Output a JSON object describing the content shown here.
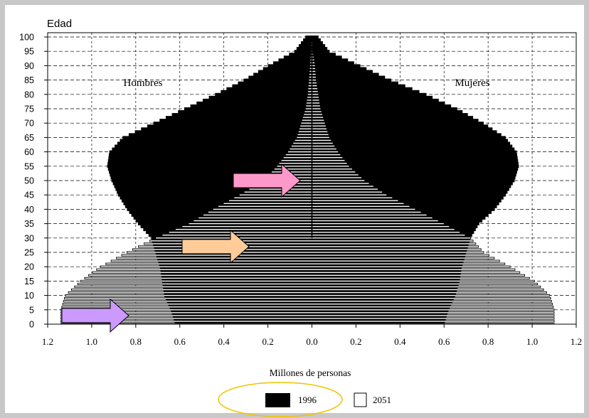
{
  "chart_data": {
    "type": "bar",
    "title": "",
    "ylabel": "Edad",
    "xlabel": "Millones de personas",
    "left_label": "Hombres",
    "right_label": "Mujeres",
    "x_tick_labels": [
      "1.2",
      "1.0",
      "0.8",
      "0.6",
      "0.4",
      "0.2",
      "0.0",
      "0.2",
      "0.4",
      "0.6",
      "0.8",
      "1.0",
      "1.2"
    ],
    "y_tick_labels": [
      "0",
      "5",
      "10",
      "15",
      "20",
      "25",
      "30",
      "35",
      "40",
      "45",
      "50",
      "55",
      "60",
      "65",
      "70",
      "75",
      "80",
      "85",
      "90",
      "95",
      "100"
    ],
    "xlim": [
      -1.2,
      1.2
    ],
    "ylim": [
      0,
      100
    ],
    "grid": true,
    "legend_position": "bottom",
    "ages": [
      0,
      5,
      10,
      15,
      20,
      25,
      30,
      35,
      40,
      45,
      50,
      55,
      60,
      65,
      70,
      75,
      80,
      85,
      90,
      95,
      100
    ],
    "series": [
      {
        "name": "1996",
        "color": "#000000",
        "fill": "solid",
        "male": [
          0.62,
          0.64,
          0.67,
          0.68,
          0.69,
          0.71,
          0.73,
          0.79,
          0.84,
          0.88,
          0.91,
          0.93,
          0.92,
          0.86,
          0.72,
          0.58,
          0.44,
          0.31,
          0.2,
          0.08,
          0.03
        ],
        "female": [
          0.6,
          0.62,
          0.65,
          0.67,
          0.68,
          0.7,
          0.72,
          0.76,
          0.83,
          0.88,
          0.92,
          0.94,
          0.93,
          0.88,
          0.78,
          0.66,
          0.52,
          0.36,
          0.22,
          0.08,
          0.03
        ]
      },
      {
        "name": "2051",
        "color": "#ffffff",
        "fill": "hatched",
        "male": [
          1.14,
          1.14,
          1.12,
          1.05,
          0.96,
          0.84,
          0.71,
          0.56,
          0.45,
          0.33,
          0.22,
          0.16,
          0.11,
          0.07,
          0.05,
          0.03,
          0.02,
          0.015,
          0.01,
          0.005,
          0.0
        ],
        "female": [
          1.1,
          1.1,
          1.08,
          1.01,
          0.9,
          0.78,
          0.72,
          0.6,
          0.47,
          0.34,
          0.24,
          0.17,
          0.12,
          0.08,
          0.06,
          0.04,
          0.03,
          0.02,
          0.015,
          0.005,
          0.0
        ]
      }
    ],
    "annotations": [
      {
        "type": "arrow",
        "color": "#ff99cc",
        "direction": "right",
        "age": 50
      },
      {
        "type": "arrow",
        "color": "#ffcc99",
        "direction": "right",
        "age": 27
      },
      {
        "type": "arrow",
        "color": "#cc99ff",
        "direction": "right",
        "age": 3
      }
    ],
    "highlight_color": "#f2c200"
  }
}
